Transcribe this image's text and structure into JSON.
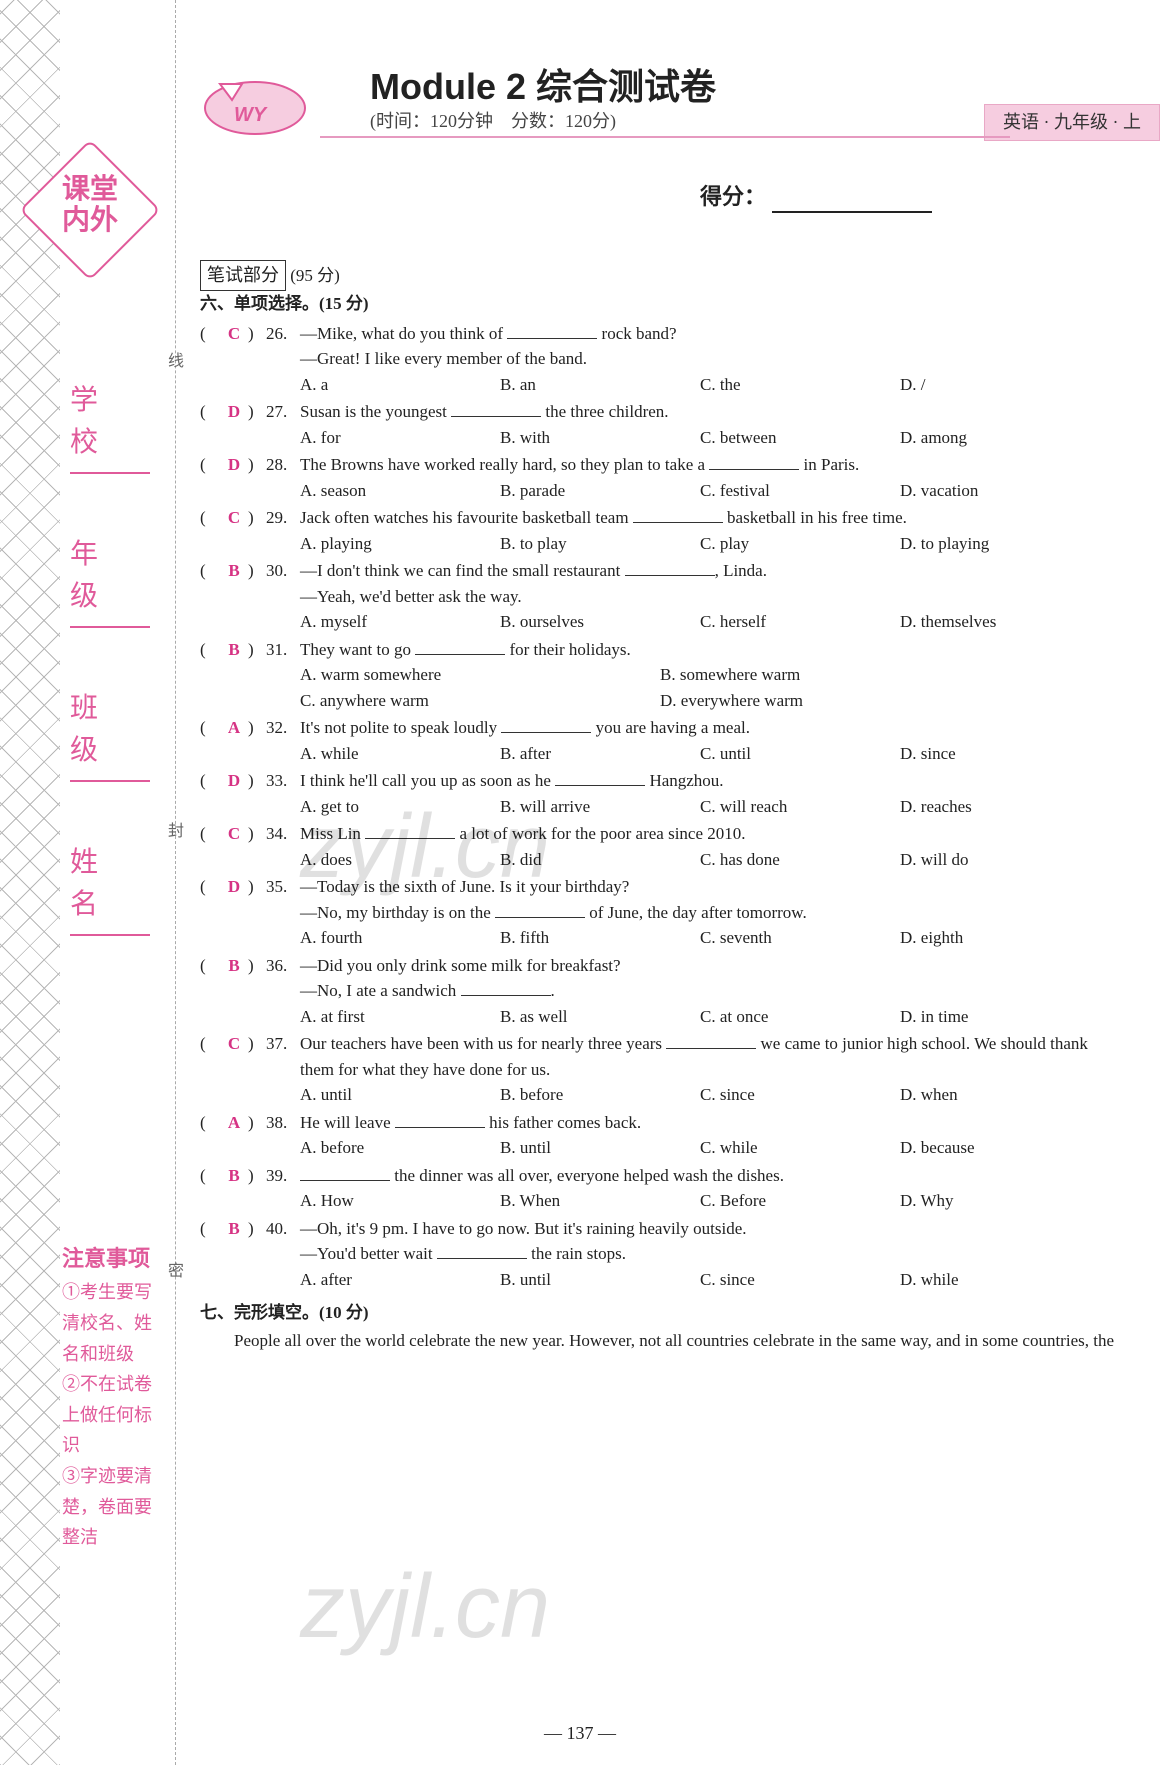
{
  "badge": "课堂\n内外",
  "wy": "WY",
  "title": "Module 2 综合测试卷",
  "subinfo": "(时间：120分钟　分数：120分)",
  "pink_tag": "英语 · 九年级 · 上",
  "score_label": "得分：",
  "written_box": "笔试部分",
  "written_points": "(95 分)",
  "section6": "六、单项选择。(15 分)",
  "section7": "七、完形填空。(10 分)",
  "vlabels": [
    "学　校",
    "年　级",
    "班　级",
    "姓　名"
  ],
  "cutchars": [
    "线",
    "封",
    "密"
  ],
  "notice_title": "注意事项",
  "notice_items": [
    "①考生要写清校名、姓名和班级",
    "②不在试卷上做任何标识",
    "③字迹要清楚，卷面要整洁"
  ],
  "questions": [
    {
      "n": "26",
      "ans": "C",
      "lines": [
        "—Mike, what do you think of ________ rock band?",
        "—Great! I like every member of the band."
      ],
      "opts": [
        "A. a",
        "B. an",
        "C. the",
        "D. /"
      ]
    },
    {
      "n": "27",
      "ans": "D",
      "lines": [
        "Susan is the youngest ________ the three children."
      ],
      "opts": [
        "A. for",
        "B. with",
        "C. between",
        "D. among"
      ]
    },
    {
      "n": "28",
      "ans": "D",
      "lines": [
        "The Browns have worked really hard, so they plan to take a ________ in Paris."
      ],
      "opts": [
        "A. season",
        "B. parade",
        "C. festival",
        "D. vacation"
      ]
    },
    {
      "n": "29",
      "ans": "C",
      "lines": [
        "Jack often watches his favourite basketball team ________ basketball in his free time."
      ],
      "opts": [
        "A. playing",
        "B. to play",
        "C. play",
        "D. to playing"
      ]
    },
    {
      "n": "30",
      "ans": "B",
      "lines": [
        "—I don't think we can find the small restaurant ________, Linda.",
        "—Yeah, we'd better ask the way."
      ],
      "opts": [
        "A. myself",
        "B. ourselves",
        "C. herself",
        "D. themselves"
      ]
    },
    {
      "n": "31",
      "ans": "B",
      "lines": [
        "They want to go ________ for their holidays."
      ],
      "opts2": [
        "A. warm somewhere",
        "B. somewhere warm",
        "C. anywhere warm",
        "D. everywhere warm"
      ]
    },
    {
      "n": "32",
      "ans": "A",
      "lines": [
        "It's not polite to speak loudly ________ you are having a meal."
      ],
      "opts": [
        "A. while",
        "B. after",
        "C. until",
        "D. since"
      ]
    },
    {
      "n": "33",
      "ans": "D",
      "lines": [
        "I think he'll call you up as soon as he ________ Hangzhou."
      ],
      "opts": [
        "A. get to",
        "B. will arrive",
        "C. will reach",
        "D. reaches"
      ]
    },
    {
      "n": "34",
      "ans": "C",
      "lines": [
        "Miss Lin ________ a lot of work for the poor area since 2010."
      ],
      "opts": [
        "A. does",
        "B. did",
        "C. has done",
        "D. will do"
      ]
    },
    {
      "n": "35",
      "ans": "D",
      "lines": [
        "—Today is the sixth of June. Is it your birthday?",
        "—No, my birthday is on the ________ of June, the day after tomorrow."
      ],
      "opts": [
        "A. fourth",
        "B. fifth",
        "C. seventh",
        "D. eighth"
      ]
    },
    {
      "n": "36",
      "ans": "B",
      "lines": [
        "—Did you only drink some milk for breakfast?",
        "—No, I ate a sandwich ________."
      ],
      "opts": [
        "A. at first",
        "B. as well",
        "C. at once",
        "D. in time"
      ]
    },
    {
      "n": "37",
      "ans": "C",
      "lines": [
        "Our teachers have been with us for nearly three years ________ we came to junior high school. We should thank them for what they have done for us."
      ],
      "opts": [
        "A. until",
        "B. before",
        "C. since",
        "D. when"
      ]
    },
    {
      "n": "38",
      "ans": "A",
      "lines": [
        "He will leave ________ his father comes back."
      ],
      "opts": [
        "A. before",
        "B. until",
        "C. while",
        "D. because"
      ]
    },
    {
      "n": "39",
      "ans": "B",
      "lines": [
        "________ the dinner was all over, everyone helped wash the dishes."
      ],
      "opts": [
        "A. How",
        "B. When",
        "C. Before",
        "D. Why"
      ]
    },
    {
      "n": "40",
      "ans": "B",
      "lines": [
        "—Oh, it's 9 pm. I have to go now. But it's raining heavily outside.",
        "—You'd better wait ________ the rain stops."
      ],
      "opts": [
        "A. after",
        "B. until",
        "C. since",
        "D. while"
      ]
    }
  ],
  "cloze_para": "People all over the world celebrate the new year. However, not all countries celebrate in the same way, and in some countries, the",
  "page_num": "— 137 —",
  "watermark": "zyjl.cn"
}
